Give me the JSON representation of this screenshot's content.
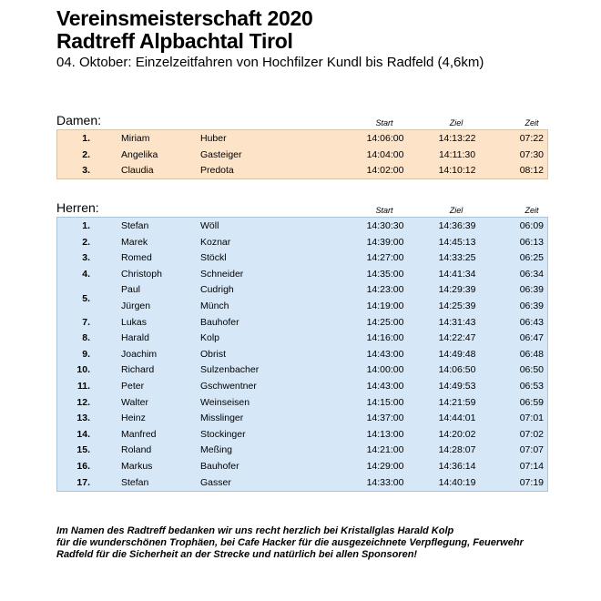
{
  "header": {
    "title_line1": "Vereinsmeisterschaft 2020",
    "title_line2": "Radtreff Alpbachtal Tirol",
    "subtitle": "04. Oktober: Einzelzeitfahren von Hochfilzer Kundl bis Radfeld (4,6km)"
  },
  "columns": {
    "start": "Start",
    "ziel": "Ziel",
    "zeit": "Zeit"
  },
  "damen": {
    "label": "Damen:",
    "rows": [
      {
        "rank": "1.",
        "first": "Miriam",
        "last": "Huber",
        "start": "14:06:00",
        "ziel": "14:13:22",
        "zeit": "07:22"
      },
      {
        "rank": "2.",
        "first": "Angelika",
        "last": "Gasteiger",
        "start": "14:04:00",
        "ziel": "14:11:30",
        "zeit": "07:30"
      },
      {
        "rank": "3.",
        "first": "Claudia",
        "last": "Predota",
        "start": "14:02:00",
        "ziel": "14:10:12",
        "zeit": "08:12"
      }
    ]
  },
  "herren": {
    "label": "Herren:",
    "rows": [
      {
        "rank": "1.",
        "first": "Stefan",
        "last": "Wöll",
        "start": "14:30:30",
        "ziel": "14:36:39",
        "zeit": "06:09"
      },
      {
        "rank": "2.",
        "first": "Marek",
        "last": "Koznar",
        "start": "14:39:00",
        "ziel": "14:45:13",
        "zeit": "06:13"
      },
      {
        "rank": "3.",
        "first": "Romed",
        "last": "Stöckl",
        "start": "14:27:00",
        "ziel": "14:33:25",
        "zeit": "06:25"
      },
      {
        "rank": "4.",
        "first": "Christoph",
        "last": "Schneider",
        "start": "14:35:00",
        "ziel": "14:41:34",
        "zeit": "06:34"
      },
      {
        "rank": "5.",
        "first": "Paul",
        "last": "Cudrigh",
        "start": "14:23:00",
        "ziel": "14:29:39",
        "zeit": "06:39"
      },
      {
        "rank": "",
        "first": "Jürgen",
        "last": "Münch",
        "start": "14:19:00",
        "ziel": "14:25:39",
        "zeit": "06:39"
      },
      {
        "rank": "7.",
        "first": "Lukas",
        "last": "Bauhofer",
        "start": "14:25:00",
        "ziel": "14:31:43",
        "zeit": "06:43"
      },
      {
        "rank": "8.",
        "first": "Harald",
        "last": "Kolp",
        "start": "14:16:00",
        "ziel": "14:22:47",
        "zeit": "06:47"
      },
      {
        "rank": "9.",
        "first": "Joachim",
        "last": "Obrist",
        "start": "14:43:00",
        "ziel": "14:49:48",
        "zeit": "06:48"
      },
      {
        "rank": "10.",
        "first": "Richard",
        "last": "Sulzenbacher",
        "start": "14:00:00",
        "ziel": "14:06:50",
        "zeit": "06:50"
      },
      {
        "rank": "11.",
        "first": "Peter",
        "last": "Gschwentner",
        "start": "14:43:00",
        "ziel": "14:49:53",
        "zeit": "06:53"
      },
      {
        "rank": "12.",
        "first": "Walter",
        "last": "Weinseisen",
        "start": "14:15:00",
        "ziel": "14:21:59",
        "zeit": "06:59"
      },
      {
        "rank": "13.",
        "first": "Heinz",
        "last": "Misslinger",
        "start": "14:37:00",
        "ziel": "14:44:01",
        "zeit": "07:01"
      },
      {
        "rank": "14.",
        "first": "Manfred",
        "last": "Stockinger",
        "start": "14:13:00",
        "ziel": "14:20:02",
        "zeit": "07:02"
      },
      {
        "rank": "15.",
        "first": "Roland",
        "last": "Meßing",
        "start": "14:21:00",
        "ziel": "14:28:07",
        "zeit": "07:07"
      },
      {
        "rank": "16.",
        "first": "Markus",
        "last": "Bauhofer",
        "start": "14:29:00",
        "ziel": "14:36:14",
        "zeit": "07:14"
      },
      {
        "rank": "17.",
        "first": "Stefan",
        "last": "Gasser",
        "start": "14:33:00",
        "ziel": "14:40:19",
        "zeit": "07:19"
      }
    ]
  },
  "footer": {
    "line1": "Im Namen des Radtreff bedanken wir uns recht herzlich bei Kristallglas Harald Kolp",
    "line2": "für die wunderschönen Trophäen, bei Cafe Hacker für die ausgezeichnete Verpflegung, Feuerwehr",
    "line3": "Radfeld für die Sicherheit an der Strecke und natürlich bei allen Sponsoren!"
  }
}
